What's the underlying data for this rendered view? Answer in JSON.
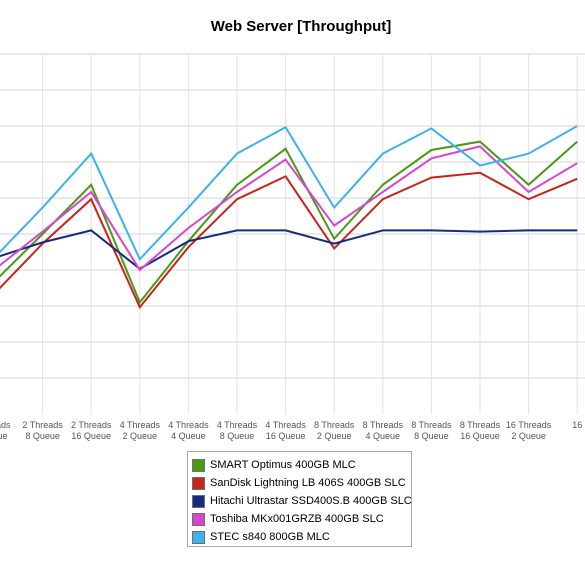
{
  "chart_data": {
    "type": "line",
    "title": "Web Server [Throughput]",
    "xlabel": "",
    "ylabel": "",
    "grid": true,
    "legend_position": "bottom-center",
    "categories": [
      [
        "Threads",
        "Queue"
      ],
      [
        "2 Threads",
        "8 Queue"
      ],
      [
        "2 Threads",
        "16 Queue"
      ],
      [
        "4 Threads",
        "2 Queue"
      ],
      [
        "4 Threads",
        "4 Queue"
      ],
      [
        "4 Threads",
        "8 Queue"
      ],
      [
        "4 Threads",
        "16 Queue"
      ],
      [
        "8 Threads",
        "2 Queue"
      ],
      [
        "8 Threads",
        "4 Queue"
      ],
      [
        "8 Threads",
        "8 Queue"
      ],
      [
        "8 Threads",
        "16 Queue"
      ],
      [
        "16 Threads",
        "2 Queue"
      ],
      [
        "16",
        ""
      ]
    ],
    "series": [
      {
        "name": "SMART Optimus 400GB MLC",
        "color": "#4a9a16",
        "values": [
          5.5,
          7.5,
          9.55,
          4.65,
          7.2,
          9.55,
          11.05,
          7.3,
          9.55,
          11.0,
          11.35,
          9.55,
          11.35
        ]
      },
      {
        "name": "SanDisk Lightning LB 406S 400GB SLC",
        "color": "#c7241c",
        "values": [
          5.0,
          7.1,
          8.95,
          4.45,
          6.95,
          8.95,
          9.9,
          6.9,
          8.95,
          9.85,
          10.05,
          8.95,
          9.8
        ]
      },
      {
        "name": "Hitachi Ultrastar SSD400S.B 400GB SLC",
        "color": "#162b80",
        "values": [
          6.5,
          7.15,
          7.65,
          6.05,
          7.2,
          7.65,
          7.65,
          7.1,
          7.65,
          7.65,
          7.6,
          7.65,
          7.65
        ]
      },
      {
        "name": "Toshiba MKx001GRZB 400GB SLC",
        "color": "#d846d1",
        "values": [
          6.0,
          7.6,
          9.25,
          6.0,
          7.75,
          9.25,
          10.6,
          7.85,
          9.25,
          10.65,
          11.15,
          9.25,
          10.45
        ]
      },
      {
        "name": "STEC s840 800GB MLC",
        "color": "#3db3ea",
        "values": [
          6.5,
          8.6,
          10.85,
          6.45,
          8.6,
          10.85,
          11.95,
          8.6,
          10.85,
          11.9,
          10.35,
          10.85,
          12.0
        ]
      }
    ],
    "ylim": [
      0,
      15
    ]
  }
}
